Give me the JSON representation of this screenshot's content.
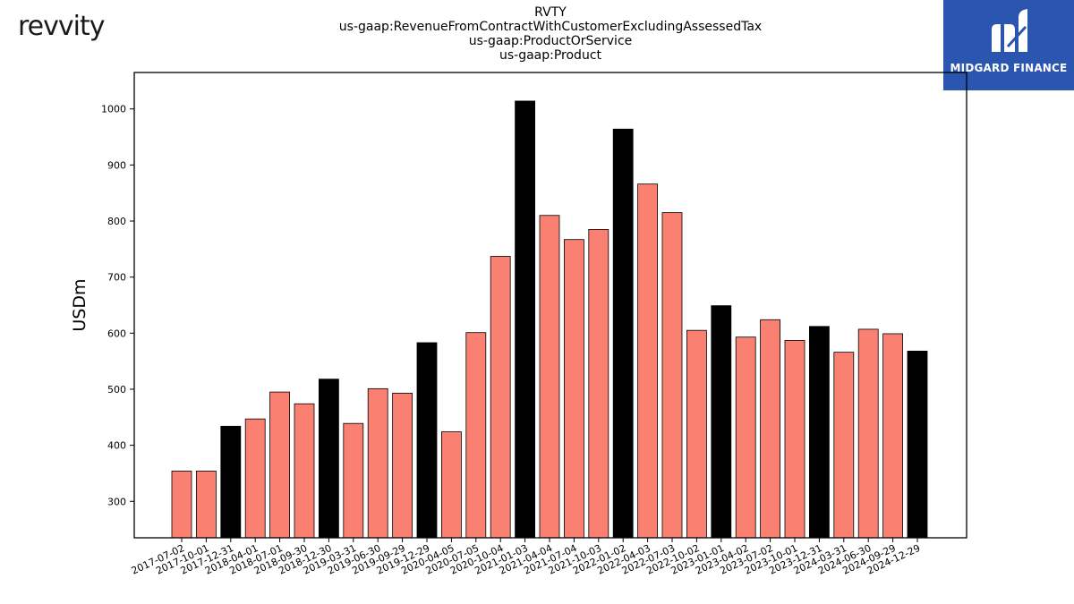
{
  "header": {
    "brand_logo_text": "revvity",
    "title_lines": [
      "RVTY",
      "us-gaap:RevenueFromContractWithCustomerExcludingAssessedTax",
      "us-gaap:ProductOrService",
      "us-gaap:Product"
    ],
    "partner_logo_text": "MIDGARD FINANCE"
  },
  "colors": {
    "bar_default": "#fa8072",
    "bar_highlight": "#000000",
    "bar_stroke": "#000000",
    "partner_bg": "#2a56b0"
  },
  "chart_data": {
    "type": "bar",
    "title": "RVTY us-gaap:RevenueFromContractWithCustomerExcludingAssessedTax us-gaap:ProductOrService us-gaap:Product",
    "xlabel": "",
    "ylabel": "USDm",
    "ylim": [
      235,
      1065
    ],
    "yticks": [
      300,
      400,
      500,
      600,
      700,
      800,
      900,
      1000
    ],
    "grid": false,
    "categories": [
      "2017-07-02",
      "2017-10-01",
      "2017-12-31",
      "2018-04-01",
      "2018-07-01",
      "2018-09-30",
      "2018-12-30",
      "2019-03-31",
      "2019-06-30",
      "2019-09-29",
      "2019-12-29",
      "2020-04-05",
      "2020-07-05",
      "2020-10-04",
      "2021-01-03",
      "2021-04-04",
      "2021-07-04",
      "2021-10-03",
      "2022-01-02",
      "2022-04-03",
      "2022-07-03",
      "2022-10-02",
      "2023-01-01",
      "2023-04-02",
      "2023-07-02",
      "2023-10-01",
      "2023-12-31",
      "2024-03-31",
      "2024-06-30",
      "2024-09-29",
      "2024-12-29"
    ],
    "values": [
      354,
      354,
      434,
      447,
      495,
      474,
      518,
      439,
      501,
      493,
      583,
      424,
      601,
      737,
      1014,
      810,
      767,
      785,
      964,
      866,
      815,
      605,
      649,
      593,
      624,
      587,
      612,
      566,
      607,
      599,
      568
    ],
    "highlight_categories": [
      "2017-12-31",
      "2018-12-30",
      "2019-12-29",
      "2021-01-03",
      "2022-01-02",
      "2023-01-01",
      "2023-12-31",
      "2024-12-29"
    ]
  }
}
